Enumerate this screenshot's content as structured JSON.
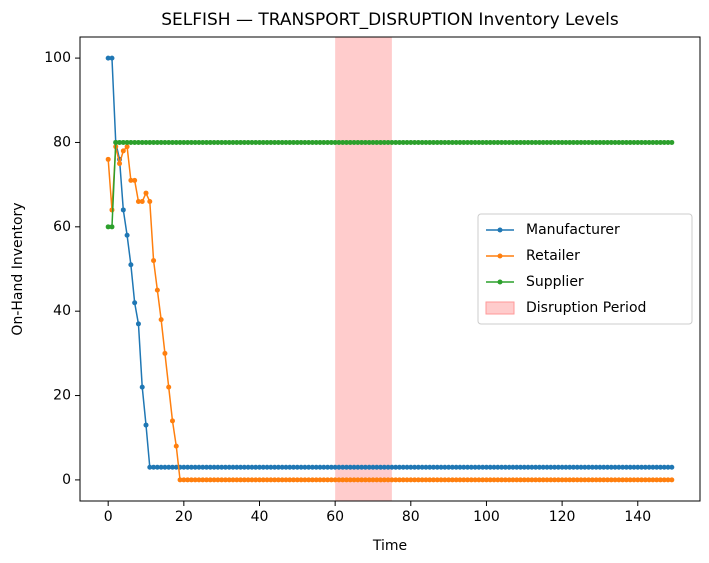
{
  "chart_data": {
    "type": "line",
    "title": "SELFISH — TRANSPORT_DISRUPTION Inventory Levels",
    "xlabel": "Time",
    "ylabel": "On-Hand Inventory",
    "x": [
      0,
      1,
      2,
      3,
      4,
      5,
      6,
      7,
      8,
      9,
      10,
      11,
      12,
      13,
      14,
      15,
      16,
      17,
      18,
      19,
      20,
      21,
      22,
      23,
      24,
      25,
      26,
      27,
      28,
      29,
      30,
      31,
      32,
      33,
      34,
      35,
      36,
      37,
      38,
      39,
      40,
      41,
      42,
      43,
      44,
      45,
      46,
      47,
      48,
      49,
      50,
      51,
      52,
      53,
      54,
      55,
      56,
      57,
      58,
      59,
      60,
      61,
      62,
      63,
      64,
      65,
      66,
      67,
      68,
      69,
      70,
      71,
      72,
      73,
      74,
      75,
      76,
      77,
      78,
      79,
      80,
      81,
      82,
      83,
      84,
      85,
      86,
      87,
      88,
      89,
      90,
      91,
      92,
      93,
      94,
      95,
      96,
      97,
      98,
      99,
      100,
      101,
      102,
      103,
      104,
      105,
      106,
      107,
      108,
      109,
      110,
      111,
      112,
      113,
      114,
      115,
      116,
      117,
      118,
      119,
      120,
      121,
      122,
      123,
      124,
      125,
      126,
      127,
      128,
      129,
      130,
      131,
      132,
      133,
      134,
      135,
      136,
      137,
      138,
      139,
      140,
      141,
      142,
      143,
      144,
      145,
      146,
      147,
      148,
      149
    ],
    "series": [
      {
        "name": "Manufacturer",
        "color": "#1f77b4",
        "values": [
          100,
          100,
          80,
          76,
          64,
          58,
          51,
          42,
          37,
          22,
          13,
          3,
          3,
          3,
          3,
          3,
          3,
          3,
          3,
          3,
          3,
          3,
          3,
          3,
          3,
          3,
          3,
          3,
          3,
          3,
          3,
          3,
          3,
          3,
          3,
          3,
          3,
          3,
          3,
          3,
          3,
          3,
          3,
          3,
          3,
          3,
          3,
          3,
          3,
          3,
          3,
          3,
          3,
          3,
          3,
          3,
          3,
          3,
          3,
          3,
          3,
          3,
          3,
          3,
          3,
          3,
          3,
          3,
          3,
          3,
          3,
          3,
          3,
          3,
          3,
          3,
          3,
          3,
          3,
          3,
          3,
          3,
          3,
          3,
          3,
          3,
          3,
          3,
          3,
          3,
          3,
          3,
          3,
          3,
          3,
          3,
          3,
          3,
          3,
          3,
          3,
          3,
          3,
          3,
          3,
          3,
          3,
          3,
          3,
          3,
          3,
          3,
          3,
          3,
          3,
          3,
          3,
          3,
          3,
          3,
          3,
          3,
          3,
          3,
          3,
          3,
          3,
          3,
          3,
          3,
          3,
          3,
          3,
          3,
          3,
          3,
          3,
          3,
          3,
          3,
          3,
          3,
          3,
          3,
          3,
          3,
          3,
          3,
          3,
          3
        ]
      },
      {
        "name": "Retailer",
        "color": "#ff7f0e",
        "values": [
          76,
          64,
          79,
          75,
          78,
          79,
          71,
          71,
          66,
          66,
          68,
          66,
          52,
          45,
          38,
          30,
          22,
          14,
          8,
          0,
          0,
          0,
          0,
          0,
          0,
          0,
          0,
          0,
          0,
          0,
          0,
          0,
          0,
          0,
          0,
          0,
          0,
          0,
          0,
          0,
          0,
          0,
          0,
          0,
          0,
          0,
          0,
          0,
          0,
          0,
          0,
          0,
          0,
          0,
          0,
          0,
          0,
          0,
          0,
          0,
          0,
          0,
          0,
          0,
          0,
          0,
          0,
          0,
          0,
          0,
          0,
          0,
          0,
          0,
          0,
          0,
          0,
          0,
          0,
          0,
          0,
          0,
          0,
          0,
          0,
          0,
          0,
          0,
          0,
          0,
          0,
          0,
          0,
          0,
          0,
          0,
          0,
          0,
          0,
          0,
          0,
          0,
          0,
          0,
          0,
          0,
          0,
          0,
          0,
          0,
          0,
          0,
          0,
          0,
          0,
          0,
          0,
          0,
          0,
          0,
          0,
          0,
          0,
          0,
          0,
          0,
          0,
          0,
          0,
          0,
          0,
          0,
          0,
          0,
          0,
          0,
          0,
          0,
          0,
          0,
          0,
          0,
          0,
          0,
          0,
          0,
          0,
          0,
          0,
          0
        ]
      },
      {
        "name": "Supplier",
        "color": "#2ca02c",
        "values": [
          60,
          60,
          80,
          80,
          80,
          80,
          80,
          80,
          80,
          80,
          80,
          80,
          80,
          80,
          80,
          80,
          80,
          80,
          80,
          80,
          80,
          80,
          80,
          80,
          80,
          80,
          80,
          80,
          80,
          80,
          80,
          80,
          80,
          80,
          80,
          80,
          80,
          80,
          80,
          80,
          80,
          80,
          80,
          80,
          80,
          80,
          80,
          80,
          80,
          80,
          80,
          80,
          80,
          80,
          80,
          80,
          80,
          80,
          80,
          80,
          80,
          80,
          80,
          80,
          80,
          80,
          80,
          80,
          80,
          80,
          80,
          80,
          80,
          80,
          80,
          80,
          80,
          80,
          80,
          80,
          80,
          80,
          80,
          80,
          80,
          80,
          80,
          80,
          80,
          80,
          80,
          80,
          80,
          80,
          80,
          80,
          80,
          80,
          80,
          80,
          80,
          80,
          80,
          80,
          80,
          80,
          80,
          80,
          80,
          80,
          80,
          80,
          80,
          80,
          80,
          80,
          80,
          80,
          80,
          80,
          80,
          80,
          80,
          80,
          80,
          80,
          80,
          80,
          80,
          80,
          80,
          80,
          80,
          80,
          80,
          80,
          80,
          80,
          80,
          80,
          80,
          80,
          80,
          80,
          80,
          80,
          80,
          80,
          80,
          80
        ]
      }
    ],
    "span": {
      "name": "Disruption Period",
      "start": 60,
      "end": 75,
      "color": "#ff9999"
    },
    "xlim": [
      -7.45,
      156.45
    ],
    "ylim": [
      -5,
      105
    ],
    "xticks": [
      0,
      20,
      40,
      60,
      80,
      100,
      120,
      140
    ],
    "yticks": [
      0,
      20,
      40,
      60,
      80,
      100
    ],
    "legend": "center right"
  }
}
